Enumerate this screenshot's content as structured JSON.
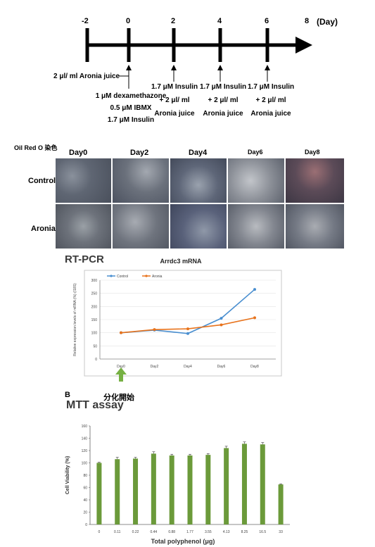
{
  "timeline": {
    "ticks": [
      "-2",
      "0",
      "2",
      "4",
      "6",
      "8"
    ],
    "unit": "(Day)",
    "annotations": {
      "day_minus2": [
        "2 μl/ ml Aronia juice"
      ],
      "day0": [
        "1 μM dexamethazone",
        "0.5 μM IBMX",
        "1.7 μM Insulin"
      ],
      "day2": [
        "1.7 μM Insulin",
        "+ 2 μl/ ml",
        "Aronia juice"
      ],
      "day4": [
        "1.7 μM Insulin",
        "+ 2 μl/ ml",
        "Aronia juice"
      ],
      "day6": [
        "1.7 μM Insulin",
        "+ 2 μl/ ml",
        "Aronia juice"
      ]
    }
  },
  "oil_red": {
    "title": "Oil Red O 染色",
    "columns": [
      "Day0",
      "Day2",
      "Day4",
      "Day6",
      "Day8"
    ],
    "rows": [
      "Control",
      "Aronia"
    ]
  },
  "rtpcr": {
    "section_label": "RT-PCR",
    "arrow_label": "分化開始",
    "chart_data": {
      "type": "line",
      "title": "Arrdc3 mRNA",
      "ylabel": "Relative expression levels of mRNA (%) (/18S)",
      "categories": [
        "Day0",
        "Day2",
        "Day4",
        "Day6",
        "Day8"
      ],
      "ylim": [
        0,
        300
      ],
      "yticks": [
        "0",
        "50",
        "100",
        "150",
        "200",
        "250",
        "300"
      ],
      "legend_position": "top",
      "series": [
        {
          "name": "Control",
          "color": "#4a8fd0",
          "values": [
            100,
            110,
            97,
            155,
            265
          ]
        },
        {
          "name": "Aronia",
          "color": "#e8731c",
          "values": [
            100,
            112,
            115,
            130,
            157
          ]
        }
      ]
    }
  },
  "mtt": {
    "panel_letter": "B",
    "section_label": "MTT assay",
    "chart_data": {
      "type": "bar",
      "xlabel": "Total polyphenol (μg)",
      "ylabel": "Cell Viability (%)",
      "categories": [
        "0",
        "0.11",
        "0.22",
        "0.44",
        "0.88",
        "1.77",
        "3.55",
        "4.13",
        "8.25",
        "16.5",
        "33"
      ],
      "values": [
        100,
        106,
        107,
        115,
        112,
        112,
        113,
        124,
        131,
        130,
        65
      ],
      "errors": [
        1,
        3,
        2,
        3,
        2,
        2,
        2,
        3,
        3,
        3,
        1
      ],
      "ylim": [
        0,
        160
      ],
      "yticks": [
        "0",
        "20",
        "40",
        "60",
        "80",
        "100",
        "120",
        "140",
        "160"
      ],
      "bar_color": "#6b9a3a"
    }
  }
}
